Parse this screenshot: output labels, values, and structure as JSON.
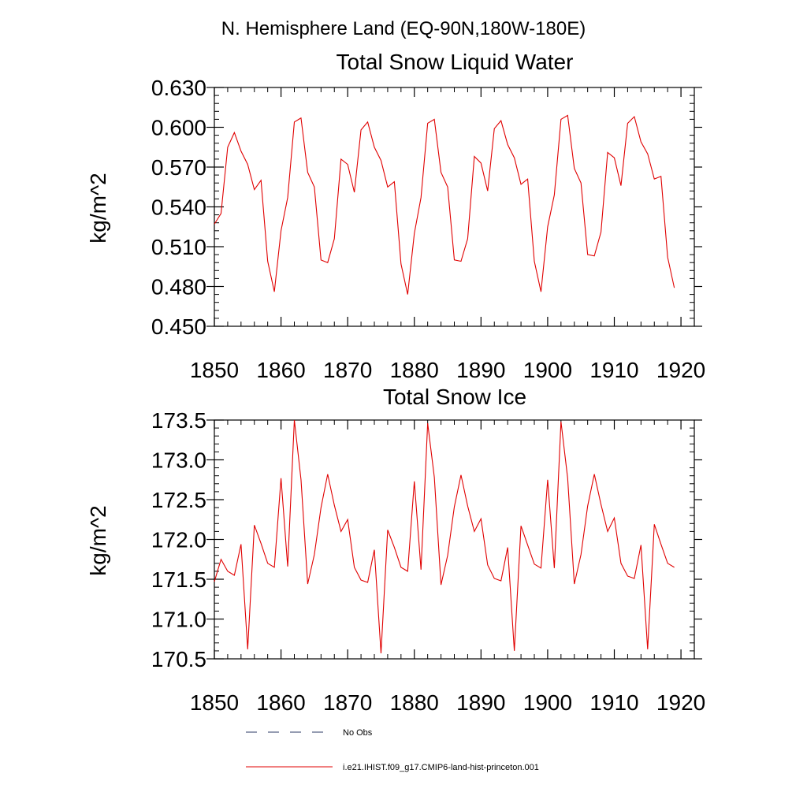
{
  "figure": {
    "title": "N. Hemisphere Land (EQ-90N,180W-180E)"
  },
  "colors": {
    "series_line": "#e00000",
    "obs_line": "#2b3a66",
    "axis": "#000000"
  },
  "chart_data": [
    {
      "type": "line",
      "title": "Total Snow Liquid Water",
      "xlabel": "",
      "ylabel": "kg/m^2",
      "xlim": [
        1850,
        1922
      ],
      "ylim": [
        0.45,
        0.63
      ],
      "x_ticks": [
        1850,
        1860,
        1870,
        1880,
        1890,
        1900,
        1910,
        1920
      ],
      "x_tick_labels": [
        "1850",
        "1860",
        "1870",
        "1880",
        "1890",
        "1900",
        "1910",
        "1920"
      ],
      "y_ticks": [
        0.45,
        0.48,
        0.51,
        0.54,
        0.57,
        0.6,
        0.63
      ],
      "y_tick_labels": [
        "0.450",
        "0.480",
        "0.510",
        "0.540",
        "0.570",
        "0.600",
        "0.630"
      ],
      "grid": false,
      "series": [
        {
          "name": "i.e21.IHIST.f09_g17.CMIP6-land-hist-princeton.001",
          "x": [
            1850,
            1851,
            1852,
            1853,
            1854,
            1855,
            1856,
            1857,
            1858,
            1859,
            1860,
            1861,
            1862,
            1863,
            1864,
            1865,
            1866,
            1867,
            1868,
            1869,
            1870,
            1871,
            1872,
            1873,
            1874,
            1875,
            1876,
            1877,
            1878,
            1879,
            1880,
            1881,
            1882,
            1883,
            1884,
            1885,
            1886,
            1887,
            1888,
            1889,
            1890,
            1891,
            1892,
            1893,
            1894,
            1895,
            1896,
            1897,
            1898,
            1899,
            1900,
            1901,
            1902,
            1903,
            1904,
            1905,
            1906,
            1907,
            1908,
            1909,
            1910,
            1911,
            1912,
            1913,
            1914,
            1915,
            1916,
            1917,
            1918,
            1919
          ],
          "values": [
            0.527,
            0.535,
            0.585,
            0.596,
            0.582,
            0.572,
            0.553,
            0.56,
            0.499,
            0.476,
            0.522,
            0.547,
            0.604,
            0.607,
            0.566,
            0.555,
            0.5,
            0.498,
            0.516,
            0.576,
            0.572,
            0.551,
            0.598,
            0.604,
            0.585,
            0.575,
            0.555,
            0.559,
            0.497,
            0.474,
            0.52,
            0.547,
            0.603,
            0.606,
            0.566,
            0.555,
            0.5,
            0.499,
            0.516,
            0.578,
            0.573,
            0.552,
            0.599,
            0.605,
            0.587,
            0.577,
            0.557,
            0.561,
            0.499,
            0.476,
            0.525,
            0.549,
            0.606,
            0.609,
            0.569,
            0.558,
            0.504,
            0.503,
            0.521,
            0.581,
            0.577,
            0.556,
            0.603,
            0.608,
            0.589,
            0.58,
            0.561,
            0.563,
            0.502,
            0.479
          ]
        }
      ]
    },
    {
      "type": "line",
      "title": "Total Snow Ice",
      "xlabel": "",
      "ylabel": "kg/m^2",
      "xlim": [
        1850,
        1922
      ],
      "ylim": [
        170.5,
        173.5
      ],
      "x_ticks": [
        1850,
        1860,
        1870,
        1880,
        1890,
        1900,
        1910,
        1920
      ],
      "x_tick_labels": [
        "1850",
        "1860",
        "1870",
        "1880",
        "1890",
        "1900",
        "1910",
        "1920"
      ],
      "y_ticks": [
        170.5,
        171.0,
        171.5,
        172.0,
        172.5,
        173.0,
        173.5
      ],
      "y_tick_labels": [
        "170.5",
        "171.0",
        "171.5",
        "172.0",
        "172.5",
        "173.0",
        "173.5"
      ],
      "grid": false,
      "series": [
        {
          "name": "i.e21.IHIST.f09_g17.CMIP6-land-hist-princeton.001",
          "x": [
            1850,
            1851,
            1852,
            1853,
            1854,
            1855,
            1856,
            1857,
            1858,
            1859,
            1860,
            1861,
            1862,
            1863,
            1864,
            1865,
            1866,
            1867,
            1868,
            1869,
            1870,
            1871,
            1872,
            1873,
            1874,
            1875,
            1876,
            1877,
            1878,
            1879,
            1880,
            1881,
            1882,
            1883,
            1884,
            1885,
            1886,
            1887,
            1888,
            1889,
            1890,
            1891,
            1892,
            1893,
            1894,
            1895,
            1896,
            1897,
            1898,
            1899,
            1900,
            1901,
            1902,
            1903,
            1904,
            1905,
            1906,
            1907,
            1908,
            1909,
            1910,
            1911,
            1912,
            1913,
            1914,
            1915,
            1916,
            1917,
            1918,
            1919
          ],
          "values": [
            171.47,
            171.75,
            171.6,
            171.55,
            171.94,
            170.62,
            172.18,
            171.95,
            171.7,
            171.65,
            172.77,
            171.66,
            173.5,
            172.75,
            171.44,
            171.81,
            172.4,
            172.82,
            172.43,
            172.1,
            172.25,
            171.65,
            171.49,
            171.46,
            171.87,
            170.57,
            172.12,
            171.9,
            171.65,
            171.6,
            172.73,
            171.62,
            173.46,
            172.78,
            171.43,
            171.8,
            172.41,
            172.81,
            172.42,
            172.1,
            172.26,
            171.68,
            171.51,
            171.48,
            171.9,
            170.6,
            172.17,
            171.93,
            171.69,
            171.64,
            172.75,
            171.64,
            173.48,
            172.77,
            171.44,
            171.81,
            172.42,
            172.82,
            172.44,
            172.1,
            172.27,
            171.7,
            171.54,
            171.51,
            171.93,
            170.62,
            172.19,
            171.94,
            171.7,
            171.65
          ]
        }
      ]
    }
  ],
  "legend": {
    "position": "bottom",
    "items": [
      {
        "label": "No Obs",
        "style": "dashed"
      },
      {
        "label": "i.e21.IHIST.f09_g17.CMIP6-land-hist-princeton.001",
        "style": "solid"
      }
    ]
  }
}
